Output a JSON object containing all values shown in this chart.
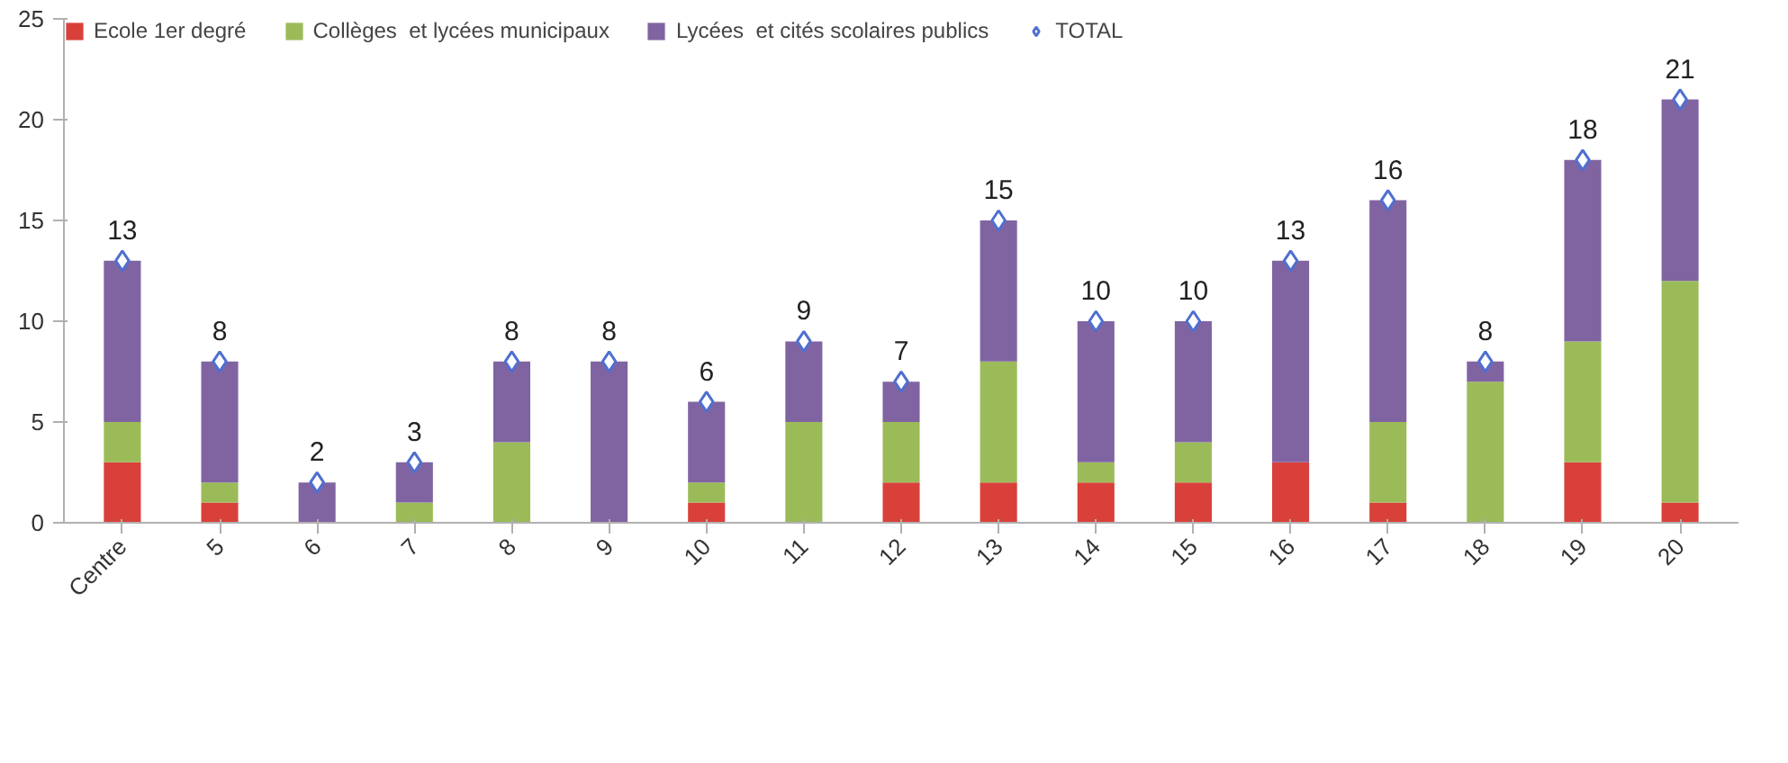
{
  "chart_data": {
    "type": "bar",
    "stacked": true,
    "categories": [
      "Centre",
      "5",
      "6",
      "7",
      "8",
      "9",
      "10",
      "11",
      "12",
      "13",
      "14",
      "15",
      "16",
      "17",
      "18",
      "19",
      "20"
    ],
    "series": [
      {
        "name": "Ecole 1er degré",
        "color": "#d9403a",
        "values": [
          3,
          1,
          0,
          0,
          0,
          0,
          1,
          0,
          2,
          2,
          2,
          2,
          3,
          1,
          0,
          3,
          1
        ]
      },
      {
        "name": "Collèges  et lycées municipaux",
        "color": "#9bbb59",
        "values": [
          2,
          1,
          0,
          1,
          4,
          0,
          1,
          5,
          3,
          6,
          1,
          2,
          0,
          4,
          7,
          6,
          11
        ]
      },
      {
        "name": "Lycées  et cités scolaires publics",
        "color": "#8064a2",
        "values": [
          8,
          6,
          2,
          2,
          4,
          8,
          4,
          4,
          2,
          7,
          7,
          6,
          10,
          11,
          1,
          9,
          9
        ]
      },
      {
        "name": "TOTAL",
        "type": "scatter",
        "marker": "diamond",
        "color": "#4f6fd0",
        "data_labels": true,
        "values": [
          13,
          8,
          2,
          3,
          8,
          8,
          6,
          9,
          7,
          15,
          10,
          10,
          13,
          16,
          8,
          18,
          21
        ]
      }
    ],
    "ylim": [
      0,
      25
    ],
    "yticks": [
      0,
      5,
      10,
      15,
      20,
      25
    ],
    "grid": false,
    "legend": "top left"
  }
}
